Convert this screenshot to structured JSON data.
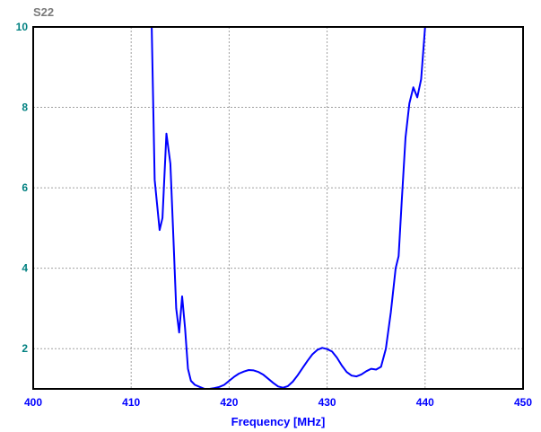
{
  "chart_data": {
    "type": "line",
    "title": "S22",
    "xlabel": "Frequency [MHz]",
    "ylabel": "",
    "xlim": [
      400,
      450
    ],
    "ylim": [
      1,
      10
    ],
    "x_ticks": [
      "400",
      "410",
      "420",
      "430",
      "440",
      "450"
    ],
    "y_ticks": [
      "2",
      "4",
      "6",
      "8",
      "10"
    ],
    "grid": true,
    "series": [
      {
        "color": "#0000ff",
        "x": [
          412.1,
          412.4,
          412.9,
          413.2,
          413.6,
          414.0,
          414.3,
          414.6,
          414.9,
          415.2,
          415.5,
          415.8,
          416.1,
          416.5,
          417.0,
          417.5,
          418.0,
          418.5,
          419.0,
          419.5,
          420.0,
          420.5,
          421.0,
          421.5,
          422.0,
          422.5,
          423.0,
          423.5,
          424.0,
          424.5,
          425.0,
          425.5,
          426.0,
          426.5,
          427.0,
          427.5,
          428.0,
          428.5,
          429.0,
          429.5,
          430.0,
          430.5,
          431.0,
          431.5,
          432.0,
          432.5,
          433.0,
          433.5,
          434.0,
          434.5,
          435.0,
          435.5,
          436.0,
          436.5,
          437.0,
          437.3,
          437.6,
          438.0,
          438.4,
          438.8,
          439.2,
          439.6,
          440.0,
          440.3,
          440.6,
          440.9
        ],
        "y": [
          10.0,
          6.2,
          4.95,
          5.25,
          7.35,
          6.6,
          4.8,
          3.0,
          2.4,
          3.3,
          2.5,
          1.5,
          1.2,
          1.1,
          1.05,
          1.0,
          1.0,
          1.02,
          1.05,
          1.1,
          1.2,
          1.3,
          1.38,
          1.43,
          1.47,
          1.46,
          1.42,
          1.35,
          1.25,
          1.15,
          1.06,
          1.03,
          1.07,
          1.18,
          1.34,
          1.52,
          1.7,
          1.86,
          1.97,
          2.02,
          1.99,
          1.93,
          1.78,
          1.58,
          1.42,
          1.33,
          1.31,
          1.36,
          1.44,
          1.5,
          1.48,
          1.55,
          2.0,
          2.9,
          4.0,
          4.3,
          5.6,
          7.25,
          8.1,
          8.5,
          8.25,
          8.7,
          10.0,
          10.3,
          10.6,
          10.9
        ]
      }
    ]
  }
}
